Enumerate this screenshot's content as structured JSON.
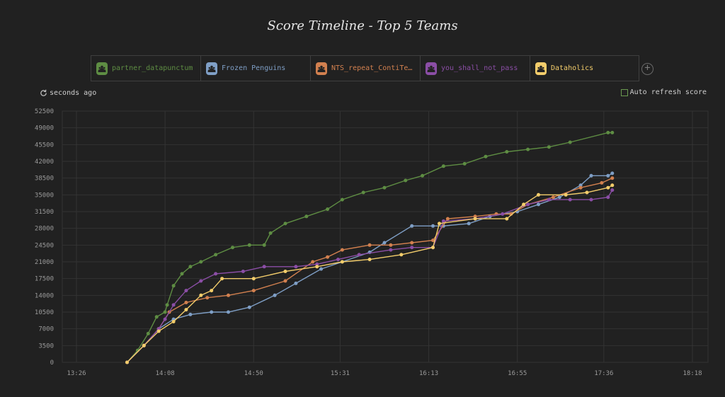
{
  "title": "Score Timeline - Top 5 Teams",
  "teams": [
    {
      "name": "partner_datapunctum",
      "color": "#5e8d43",
      "icon": "team-icon"
    },
    {
      "name": "Frozen Penguins",
      "color": "#7f9fc6",
      "icon": "team-icon"
    },
    {
      "name": "NTS_repeat_ContiTech_Orion",
      "color": "#d2804f",
      "icon": "team-icon"
    },
    {
      "name": "you_shall_not_pass",
      "color": "#8b4ea6",
      "icon": "team-icon"
    },
    {
      "name": "Dataholics",
      "color": "#f3cd6b",
      "icon": "team-icon"
    }
  ],
  "refresh": {
    "label": "seconds ago",
    "icon": "refresh-icon"
  },
  "auto_refresh": {
    "label": "Auto refresh score",
    "checked": false
  },
  "add_icon": "plus-circle-icon",
  "chart_data": {
    "type": "line",
    "x_ticks": [
      "13:26",
      "14:08",
      "14:50",
      "15:31",
      "16:13",
      "16:55",
      "17:36",
      "18:18"
    ],
    "y_ticks": [
      0,
      3500,
      7000,
      10500,
      14000,
      17500,
      21000,
      24500,
      28000,
      31500,
      35000,
      38500,
      42000,
      45500,
      49000,
      52500
    ],
    "ylim": [
      0,
      52500
    ],
    "grid": true,
    "series": [
      {
        "name": "partner_datapunctum",
        "color": "#5e8d43",
        "points": [
          [
            "13:50",
            0
          ],
          [
            "13:55",
            2500
          ],
          [
            "14:00",
            6000
          ],
          [
            "14:04",
            9500
          ],
          [
            "14:08",
            10500
          ],
          [
            "14:09",
            12000
          ],
          [
            "14:12",
            16000
          ],
          [
            "14:16",
            18500
          ],
          [
            "14:20",
            20000
          ],
          [
            "14:25",
            21000
          ],
          [
            "14:32",
            22500
          ],
          [
            "14:40",
            24000
          ],
          [
            "14:48",
            24500
          ],
          [
            "14:55",
            24500
          ],
          [
            "14:58",
            27000
          ],
          [
            "15:05",
            29000
          ],
          [
            "15:15",
            30500
          ],
          [
            "15:25",
            32000
          ],
          [
            "15:32",
            34000
          ],
          [
            "15:42",
            35500
          ],
          [
            "15:52",
            36500
          ],
          [
            "16:02",
            38000
          ],
          [
            "16:10",
            39000
          ],
          [
            "16:20",
            41000
          ],
          [
            "16:30",
            41500
          ],
          [
            "16:40",
            43000
          ],
          [
            "16:50",
            44000
          ],
          [
            "17:00",
            44500
          ],
          [
            "17:10",
            45000
          ],
          [
            "17:20",
            46000
          ],
          [
            "17:38",
            48000
          ],
          [
            "17:40",
            48000
          ]
        ]
      },
      {
        "name": "Frozen Penguins",
        "color": "#7f9fc6",
        "points": [
          [
            "13:50",
            0
          ],
          [
            "13:58",
            3500
          ],
          [
            "14:05",
            7000
          ],
          [
            "14:12",
            9000
          ],
          [
            "14:20",
            10000
          ],
          [
            "14:30",
            10500
          ],
          [
            "14:38",
            10500
          ],
          [
            "14:48",
            11500
          ],
          [
            "15:00",
            14000
          ],
          [
            "15:10",
            16500
          ],
          [
            "15:22",
            19500
          ],
          [
            "15:32",
            21000
          ],
          [
            "15:45",
            23000
          ],
          [
            "15:52",
            25000
          ],
          [
            "16:05",
            28500
          ],
          [
            "16:15",
            28500
          ],
          [
            "16:20",
            28500
          ],
          [
            "16:32",
            29000
          ],
          [
            "16:42",
            30500
          ],
          [
            "16:55",
            31500
          ],
          [
            "17:05",
            33000
          ],
          [
            "17:15",
            34500
          ],
          [
            "17:25",
            37000
          ],
          [
            "17:30",
            39000
          ],
          [
            "17:38",
            39000
          ],
          [
            "17:40",
            39500
          ]
        ]
      },
      {
        "name": "NTS_repeat_ContiTech_Orion",
        "color": "#d2804f",
        "points": [
          [
            "13:50",
            0
          ],
          [
            "13:58",
            3500
          ],
          [
            "14:05",
            7000
          ],
          [
            "14:10",
            10500
          ],
          [
            "14:18",
            12500
          ],
          [
            "14:28",
            13500
          ],
          [
            "14:38",
            14000
          ],
          [
            "14:50",
            15000
          ],
          [
            "15:05",
            17000
          ],
          [
            "15:18",
            21000
          ],
          [
            "15:25",
            22000
          ],
          [
            "15:32",
            23500
          ],
          [
            "15:45",
            24500
          ],
          [
            "15:55",
            24500
          ],
          [
            "16:05",
            25000
          ],
          [
            "16:15",
            25500
          ],
          [
            "16:22",
            30000
          ],
          [
            "16:35",
            30500
          ],
          [
            "16:45",
            31000
          ],
          [
            "16:52",
            31000
          ],
          [
            "17:00",
            33000
          ],
          [
            "17:12",
            34500
          ],
          [
            "17:25",
            36500
          ],
          [
            "17:35",
            37500
          ],
          [
            "17:40",
            38500
          ]
        ]
      },
      {
        "name": "you_shall_not_pass",
        "color": "#8b4ea6",
        "points": [
          [
            "13:50",
            0
          ],
          [
            "13:58",
            3500
          ],
          [
            "14:05",
            7000
          ],
          [
            "14:08",
            9000
          ],
          [
            "14:12",
            12000
          ],
          [
            "14:18",
            15000
          ],
          [
            "14:25",
            17000
          ],
          [
            "14:32",
            18500
          ],
          [
            "14:45",
            19000
          ],
          [
            "14:55",
            20000
          ],
          [
            "15:10",
            20000
          ],
          [
            "15:20",
            20500
          ],
          [
            "15:30",
            21500
          ],
          [
            "15:40",
            22500
          ],
          [
            "15:55",
            23500
          ],
          [
            "16:05",
            24000
          ],
          [
            "16:15",
            24000
          ],
          [
            "16:20",
            29500
          ],
          [
            "16:35",
            30000
          ],
          [
            "16:48",
            31000
          ],
          [
            "17:00",
            33000
          ],
          [
            "17:10",
            34000
          ],
          [
            "17:20",
            34000
          ],
          [
            "17:30",
            34000
          ],
          [
            "17:38",
            34500
          ],
          [
            "17:40",
            36000
          ]
        ]
      },
      {
        "name": "Dataholics",
        "color": "#f3cd6b",
        "points": [
          [
            "13:50",
            0
          ],
          [
            "13:58",
            3500
          ],
          [
            "14:05",
            6500
          ],
          [
            "14:12",
            8500
          ],
          [
            "14:18",
            11000
          ],
          [
            "14:25",
            14000
          ],
          [
            "14:30",
            15000
          ],
          [
            "14:35",
            17500
          ],
          [
            "14:50",
            17500
          ],
          [
            "15:05",
            19000
          ],
          [
            "15:20",
            20000
          ],
          [
            "15:32",
            21000
          ],
          [
            "15:45",
            21500
          ],
          [
            "16:00",
            22500
          ],
          [
            "16:15",
            24000
          ],
          [
            "16:18",
            29000
          ],
          [
            "16:35",
            30000
          ],
          [
            "16:50",
            30000
          ],
          [
            "16:58",
            33000
          ],
          [
            "17:05",
            35000
          ],
          [
            "17:18",
            35000
          ],
          [
            "17:28",
            35500
          ],
          [
            "17:38",
            36500
          ],
          [
            "17:40",
            37000
          ]
        ]
      }
    ]
  }
}
